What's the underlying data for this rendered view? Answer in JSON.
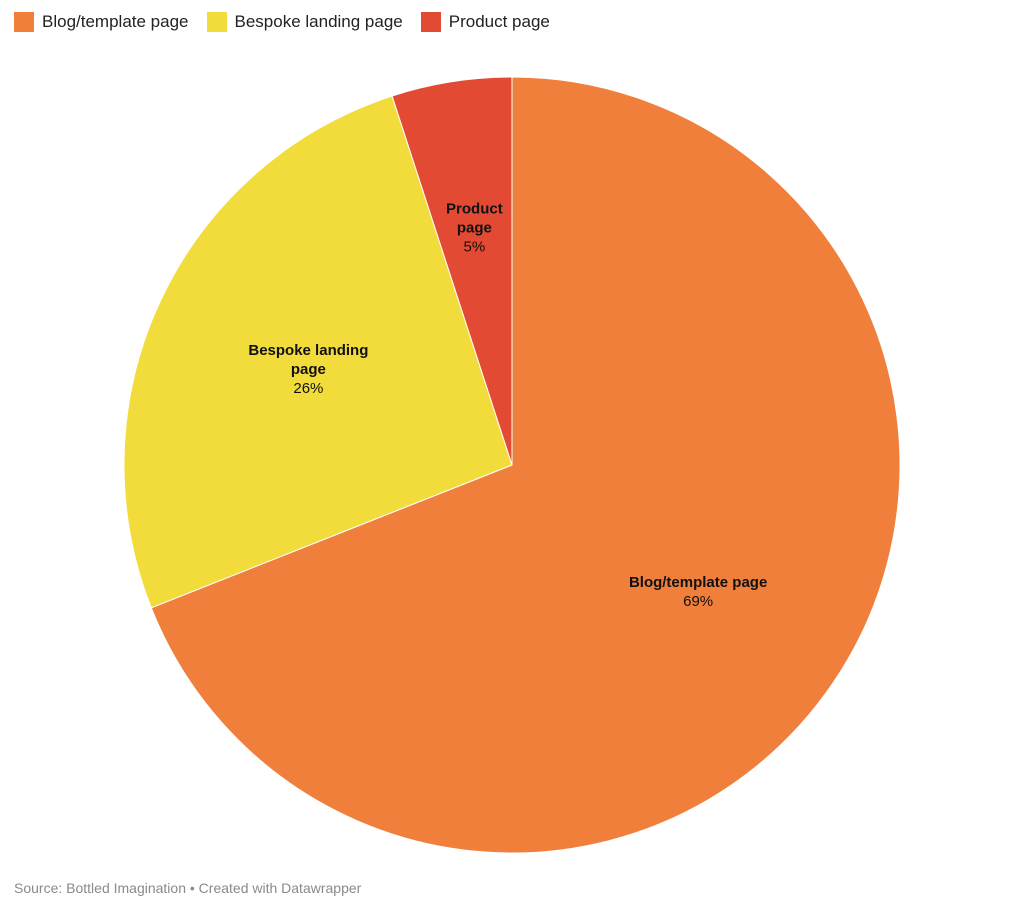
{
  "chart_data": {
    "type": "pie",
    "slices": [
      {
        "name": "Blog/template page",
        "value": 69,
        "label": "69%",
        "color": "#f07f3c",
        "label_lines": [
          "Blog/template page"
        ]
      },
      {
        "name": "Bespoke landing page",
        "value": 26,
        "label": "26%",
        "color": "#f2dc3c",
        "label_lines": [
          "Bespoke landing",
          "page"
        ]
      },
      {
        "name": "Product page",
        "value": 5,
        "label": "5%",
        "color": "#e34a33",
        "label_lines": [
          "Product",
          "page"
        ]
      }
    ],
    "legend": {
      "placement": "top-left",
      "entries": [
        "Blog/template page",
        "Bespoke landing page",
        "Product page"
      ]
    },
    "start": "12 o'clock",
    "direction": "clockwise"
  },
  "footer": {
    "source": "Source: Bottled Imagination • Created with Datawrapper"
  }
}
